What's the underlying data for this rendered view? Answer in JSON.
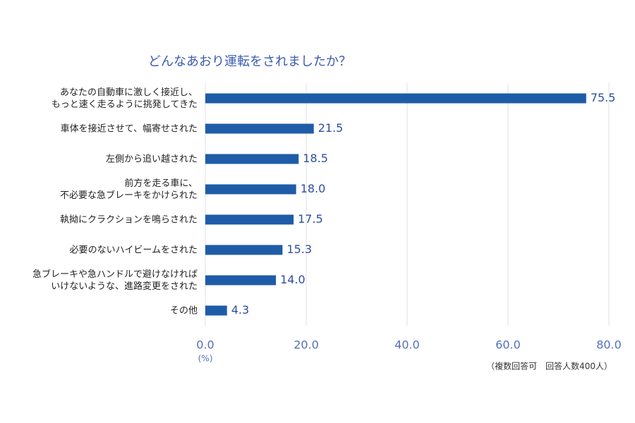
{
  "chart_data": {
    "type": "barh",
    "title": "どんなあおり運転をされましたか？",
    "categories": [
      "あなたの自動車に激しく接近し、\nもっと速く走るように挑発してきた",
      "車体を接近させて、幅寄せされた",
      "左側から追い越された",
      "前方を走る車に、\n不必要な急ブレーキをかけられた",
      "執拗にクラクションを鳴らされた",
      "必要のないハイビームをされた",
      "急ブレーキや急ハンドルで避けなければ\nいけないような、進路変更をされた",
      "その他"
    ],
    "values": [
      75.5,
      21.5,
      18.5,
      18.0,
      17.5,
      15.3,
      14.0,
      4.3
    ],
    "value_labels": [
      "75.5",
      "21.5",
      "18.5",
      "18.0",
      "17.5",
      "15.3",
      "14.0",
      "4.3"
    ],
    "color": "#1f5ca8",
    "xlim": [
      0,
      80
    ],
    "xticks": [
      {
        "value": 0,
        "label": "0.0"
      },
      {
        "value": 20,
        "label": "20.0"
      },
      {
        "value": 40,
        "label": "40.0"
      },
      {
        "value": 60,
        "label": "60.0"
      },
      {
        "value": 80,
        "label": "80.0"
      }
    ],
    "xlabel": "(%)",
    "annotation": "（複数回答可　回答人数400人）",
    "grid": true
  }
}
